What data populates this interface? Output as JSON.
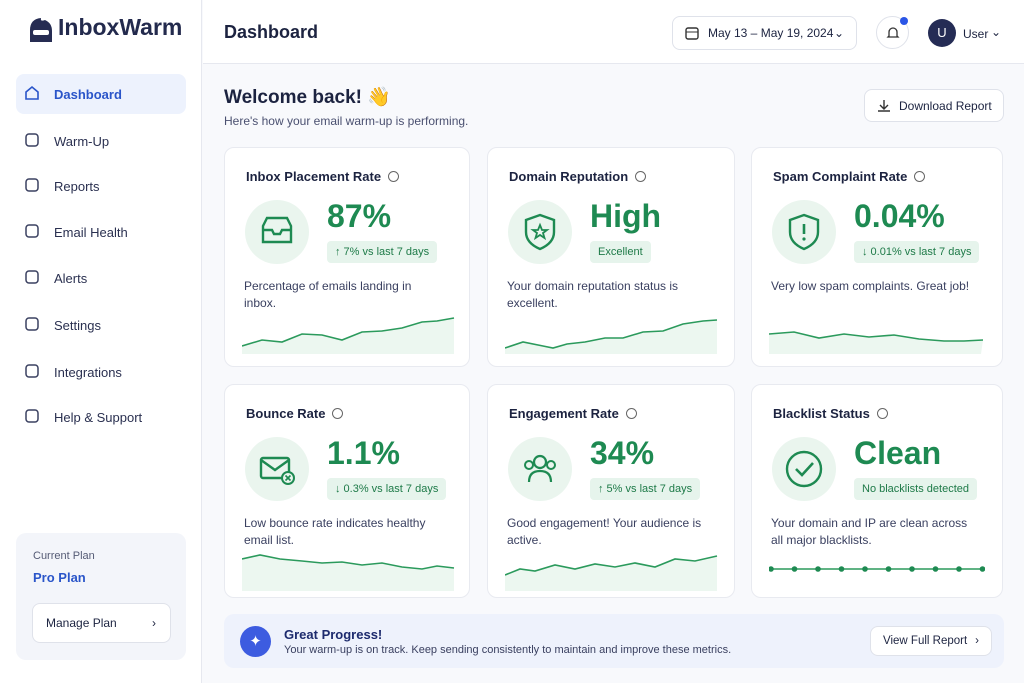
{
  "brand": "InboxWarm",
  "nav": [
    "Dashboard",
    "Warm-Up",
    "Reports",
    "Email Health",
    "Alerts",
    "Settings",
    "Integrations",
    "Help & Support"
  ],
  "plan": {
    "label": "Current Plan",
    "name": "Pro Plan",
    "button": "Manage Plan"
  },
  "header": {
    "title": "Dashboard",
    "date_range": "May 13 – May 19, 2024",
    "avatar": "U",
    "user": "User"
  },
  "welcome": {
    "title": "Welcome back! 👋",
    "subtitle": "Here's how your email warm-up is performing.",
    "button": "Download Report"
  },
  "cards": [
    {
      "title": "Inbox Placement Rate",
      "value": "87%",
      "badge": "↑ 7% vs last 7 days",
      "description": "Percentage of emails landing in inbox."
    },
    {
      "title": "Domain Reputation",
      "value": "High",
      "badge": "Excellent",
      "description": "Your domain reputation status is excellent."
    },
    {
      "title": "Spam Complaint Rate",
      "value": "0.04%",
      "badge": "↓ 0.01% vs last 7 days",
      "description": "Very low spam complaints. Great job!"
    },
    {
      "title": "Bounce Rate",
      "value": "1.1%",
      "badge": "↓ 0.3% vs last 7 days",
      "description": "Low bounce rate indicates healthy email list."
    },
    {
      "title": "Engagement Rate",
      "value": "34%",
      "badge": "↑ 5% vs last 7 days",
      "description": "Good engagement! Your audience is active."
    },
    {
      "title": "Blacklist Status",
      "value": "Clean",
      "badge": "No blacklists detected",
      "description": "Your domain and IP are clean across all major blacklists."
    }
  ],
  "banner": {
    "title": "Great Progress!",
    "text": "Your warm-up is on track. Keep sending consistently to maintain and improve these metrics.",
    "button": "View Full Report"
  }
}
